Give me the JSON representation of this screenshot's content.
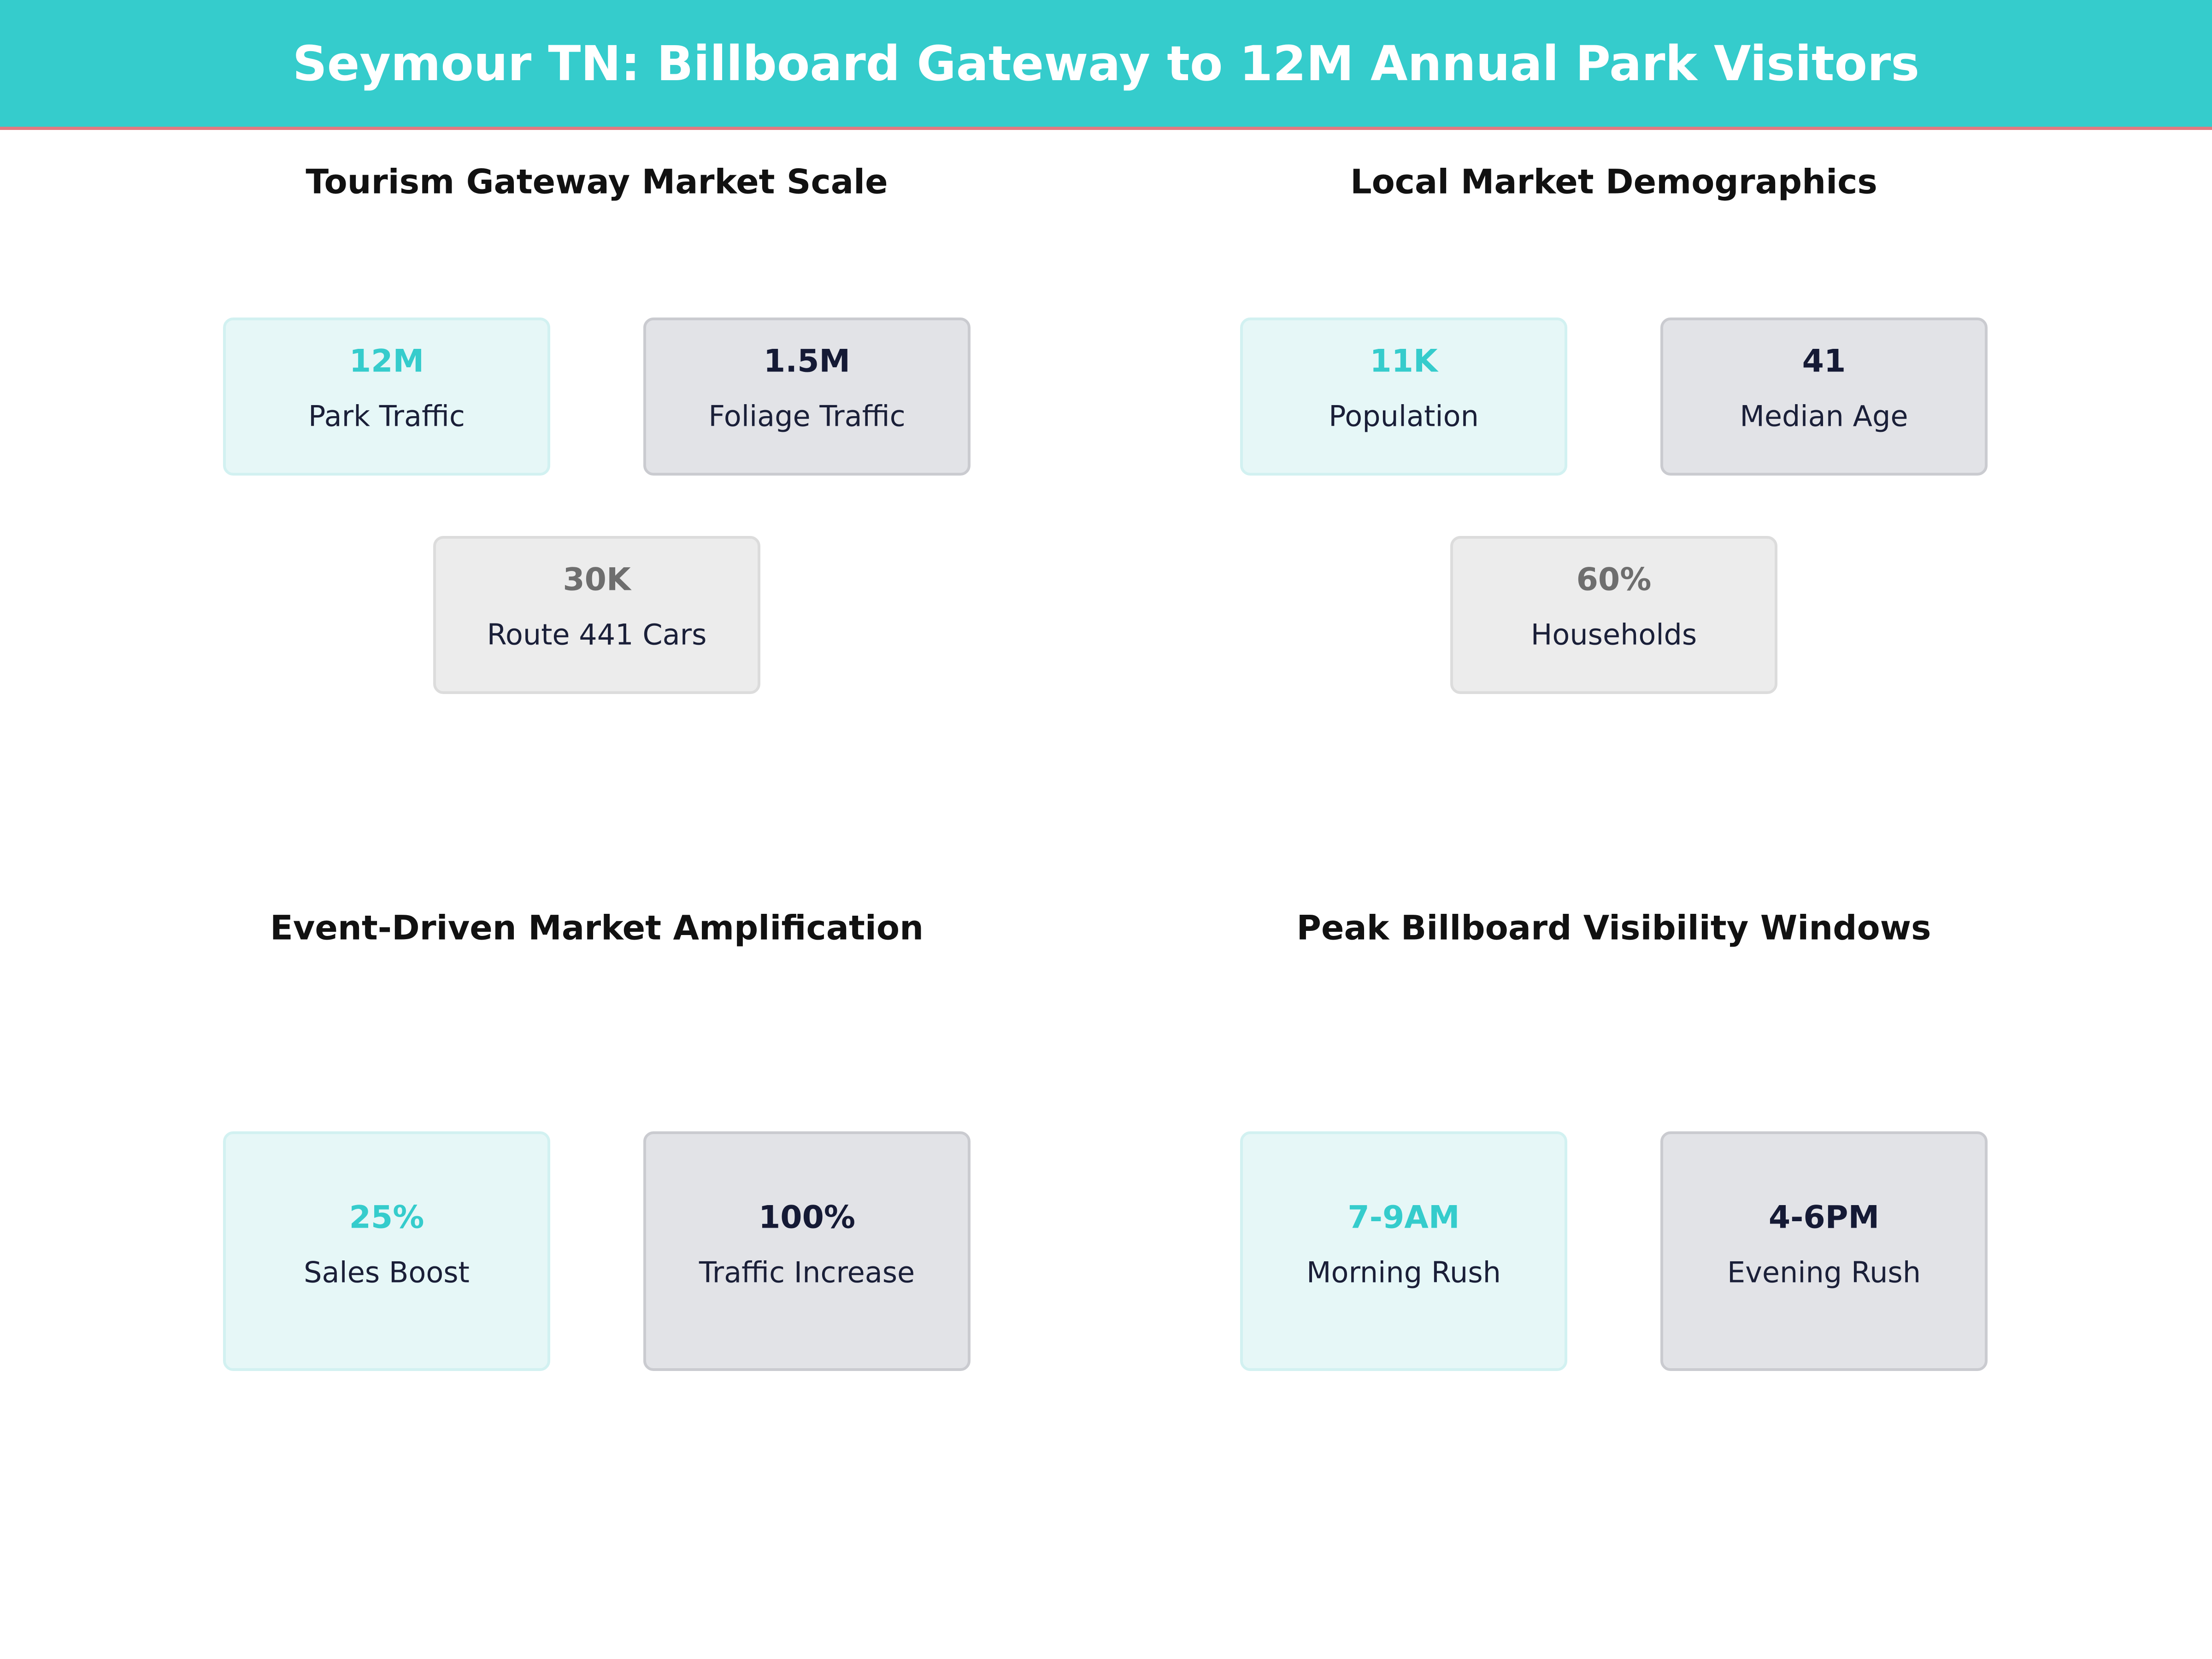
{
  "header": {
    "title": "Seymour TN: Billboard Gateway to 12M Annual Park Visitors"
  },
  "panels": [
    {
      "title": "Tourism Gateway Market Scale",
      "cards": [
        {
          "value": "12M",
          "label": "Park Traffic"
        },
        {
          "value": "1.5M",
          "label": "Foliage Traffic"
        },
        {
          "value": "30K",
          "label": "Route 441 Cars"
        }
      ]
    },
    {
      "title": "Local Market Demographics",
      "cards": [
        {
          "value": "11K",
          "label": "Population"
        },
        {
          "value": "41",
          "label": "Median Age"
        },
        {
          "value": "60%",
          "label": "Households"
        }
      ]
    },
    {
      "title": "Event-Driven Market Amplification",
      "cards": [
        {
          "value": "25%",
          "label": "Sales Boost"
        },
        {
          "value": "100%",
          "label": "Traffic Increase"
        }
      ]
    },
    {
      "title": "Peak Billboard Visibility Windows",
      "cards": [
        {
          "value": "7-9AM",
          "label": "Morning Rush"
        },
        {
          "value": "4-6PM",
          "label": "Evening Rush"
        }
      ]
    }
  ]
}
